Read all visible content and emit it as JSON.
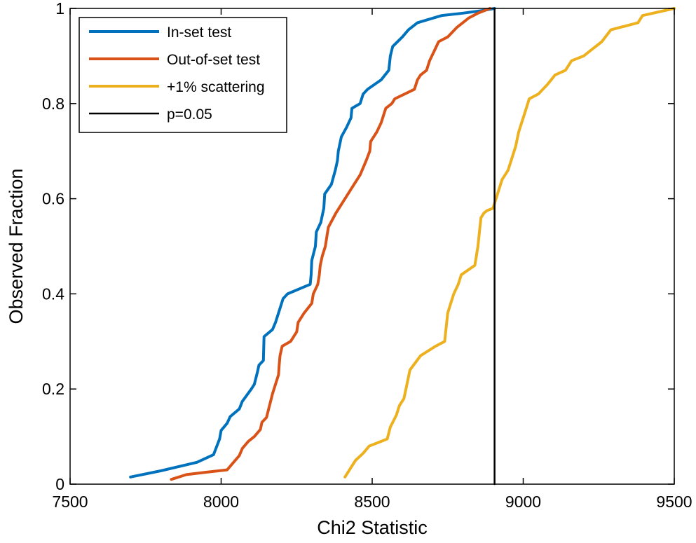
{
  "chart_data": {
    "type": "line",
    "title": "",
    "xlabel": "Chi2 Statistic",
    "ylabel": "Observed Fraction",
    "xlim": [
      7500,
      9500
    ],
    "ylim": [
      0,
      1
    ],
    "x_ticks": [
      7500,
      8000,
      8500,
      9000,
      9500
    ],
    "y_ticks": [
      0,
      0.2,
      0.4,
      0.6,
      0.8,
      1
    ],
    "x_tick_labels": [
      "7500",
      "8000",
      "8500",
      "9000",
      "9500"
    ],
    "y_tick_labels": [
      "0",
      "0.2",
      "0.4",
      "0.6",
      "0.8",
      "1"
    ],
    "grid": false,
    "legend_position": "top-left",
    "series": [
      {
        "name": "In-set test",
        "color": "#0072BD",
        "points": [
          [
            7700,
            0.015
          ],
          [
            7800,
            0.028
          ],
          [
            7920,
            0.046
          ],
          [
            7975,
            0.062
          ],
          [
            7995,
            0.095
          ],
          [
            8000,
            0.113
          ],
          [
            8020,
            0.128
          ],
          [
            8030,
            0.142
          ],
          [
            8060,
            0.158
          ],
          [
            8070,
            0.174
          ],
          [
            8100,
            0.2
          ],
          [
            8110,
            0.21
          ],
          [
            8120,
            0.235
          ],
          [
            8125,
            0.25
          ],
          [
            8140,
            0.26
          ],
          [
            8142,
            0.31
          ],
          [
            8170,
            0.325
          ],
          [
            8180,
            0.34
          ],
          [
            8190,
            0.36
          ],
          [
            8205,
            0.39
          ],
          [
            8220,
            0.4
          ],
          [
            8295,
            0.42
          ],
          [
            8298,
            0.44
          ],
          [
            8300,
            0.47
          ],
          [
            8312,
            0.5
          ],
          [
            8315,
            0.53
          ],
          [
            8330,
            0.55
          ],
          [
            8340,
            0.58
          ],
          [
            8343,
            0.61
          ],
          [
            8365,
            0.63
          ],
          [
            8378,
            0.66
          ],
          [
            8385,
            0.68
          ],
          [
            8388,
            0.7
          ],
          [
            8398,
            0.73
          ],
          [
            8415,
            0.75
          ],
          [
            8430,
            0.77
          ],
          [
            8433,
            0.79
          ],
          [
            8460,
            0.8
          ],
          [
            8470,
            0.82
          ],
          [
            8485,
            0.83
          ],
          [
            8530,
            0.85
          ],
          [
            8555,
            0.87
          ],
          [
            8560,
            0.9
          ],
          [
            8568,
            0.92
          ],
          [
            8600,
            0.94
          ],
          [
            8620,
            0.955
          ],
          [
            8650,
            0.97
          ],
          [
            8730,
            0.985
          ],
          [
            8800,
            0.99
          ],
          [
            8860,
            0.995
          ],
          [
            8905,
            1.0
          ]
        ]
      },
      {
        "name": "Out-of-set test",
        "color": "#D95319",
        "points": [
          [
            7835,
            0.01
          ],
          [
            7885,
            0.02
          ],
          [
            7950,
            0.025
          ],
          [
            8020,
            0.03
          ],
          [
            8040,
            0.045
          ],
          [
            8060,
            0.06
          ],
          [
            8070,
            0.075
          ],
          [
            8090,
            0.09
          ],
          [
            8110,
            0.1
          ],
          [
            8130,
            0.115
          ],
          [
            8135,
            0.13
          ],
          [
            8150,
            0.14
          ],
          [
            8160,
            0.165
          ],
          [
            8170,
            0.19
          ],
          [
            8180,
            0.21
          ],
          [
            8190,
            0.23
          ],
          [
            8192,
            0.25
          ],
          [
            8195,
            0.27
          ],
          [
            8202,
            0.29
          ],
          [
            8230,
            0.3
          ],
          [
            8250,
            0.32
          ],
          [
            8255,
            0.34
          ],
          [
            8275,
            0.36
          ],
          [
            8300,
            0.38
          ],
          [
            8305,
            0.4
          ],
          [
            8320,
            0.42
          ],
          [
            8325,
            0.44
          ],
          [
            8328,
            0.46
          ],
          [
            8335,
            0.48
          ],
          [
            8345,
            0.5
          ],
          [
            8350,
            0.52
          ],
          [
            8355,
            0.54
          ],
          [
            8380,
            0.57
          ],
          [
            8400,
            0.59
          ],
          [
            8420,
            0.61
          ],
          [
            8440,
            0.63
          ],
          [
            8460,
            0.65
          ],
          [
            8480,
            0.68
          ],
          [
            8492,
            0.7
          ],
          [
            8495,
            0.72
          ],
          [
            8515,
            0.74
          ],
          [
            8530,
            0.76
          ],
          [
            8540,
            0.78
          ],
          [
            8545,
            0.79
          ],
          [
            8565,
            0.8
          ],
          [
            8575,
            0.81
          ],
          [
            8640,
            0.83
          ],
          [
            8650,
            0.85
          ],
          [
            8660,
            0.86
          ],
          [
            8680,
            0.87
          ],
          [
            8690,
            0.89
          ],
          [
            8705,
            0.91
          ],
          [
            8720,
            0.93
          ],
          [
            8750,
            0.94
          ],
          [
            8780,
            0.96
          ],
          [
            8800,
            0.97
          ],
          [
            8820,
            0.98
          ],
          [
            8850,
            0.99
          ],
          [
            8890,
            1.0
          ]
        ]
      },
      {
        "name": "+1% scattering",
        "color": "#EDB120",
        "points": [
          [
            8410,
            0.015
          ],
          [
            8430,
            0.035
          ],
          [
            8445,
            0.05
          ],
          [
            8470,
            0.065
          ],
          [
            8490,
            0.08
          ],
          [
            8550,
            0.095
          ],
          [
            8560,
            0.12
          ],
          [
            8580,
            0.145
          ],
          [
            8590,
            0.165
          ],
          [
            8605,
            0.18
          ],
          [
            8615,
            0.21
          ],
          [
            8625,
            0.24
          ],
          [
            8660,
            0.27
          ],
          [
            8710,
            0.29
          ],
          [
            8740,
            0.3
          ],
          [
            8745,
            0.33
          ],
          [
            8750,
            0.36
          ],
          [
            8760,
            0.38
          ],
          [
            8770,
            0.4
          ],
          [
            8785,
            0.42
          ],
          [
            8795,
            0.44
          ],
          [
            8840,
            0.46
          ],
          [
            8850,
            0.5
          ],
          [
            8855,
            0.53
          ],
          [
            8860,
            0.56
          ],
          [
            8870,
            0.57
          ],
          [
            8880,
            0.575
          ],
          [
            8900,
            0.58
          ],
          [
            8910,
            0.6
          ],
          [
            8920,
            0.62
          ],
          [
            8930,
            0.64
          ],
          [
            8950,
            0.66
          ],
          [
            8965,
            0.69
          ],
          [
            8975,
            0.71
          ],
          [
            8985,
            0.74
          ],
          [
            8995,
            0.76
          ],
          [
            9005,
            0.78
          ],
          [
            9020,
            0.81
          ],
          [
            9050,
            0.82
          ],
          [
            9080,
            0.84
          ],
          [
            9105,
            0.86
          ],
          [
            9140,
            0.87
          ],
          [
            9160,
            0.89
          ],
          [
            9200,
            0.9
          ],
          [
            9230,
            0.915
          ],
          [
            9260,
            0.93
          ],
          [
            9290,
            0.955
          ],
          [
            9350,
            0.965
          ],
          [
            9380,
            0.97
          ],
          [
            9395,
            0.985
          ],
          [
            9500,
            1.0
          ]
        ]
      },
      {
        "name": "p=0.05",
        "color": "#000000",
        "points": [
          [
            8905,
            0
          ],
          [
            8905,
            1
          ]
        ]
      }
    ]
  }
}
